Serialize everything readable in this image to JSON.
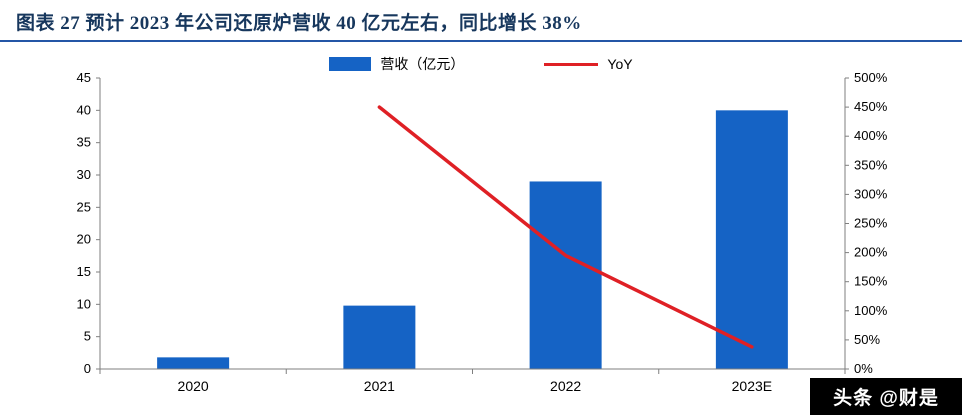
{
  "header": {
    "title": "图表 27  预计 2023 年公司还原炉营收 40 亿元左右，同比增长 38%"
  },
  "watermark": {
    "text": "头条 @财是"
  },
  "colors": {
    "bar": "#1563C5",
    "line": "#DF2025",
    "title": "#17375D",
    "rule": "#2456A6",
    "axis": "#7F7F7F"
  },
  "chart_data": {
    "type": "bar",
    "subtype": "bar+line combo, dual axis",
    "title": "图表 27  预计 2023 年公司还原炉营收 40 亿元左右，同比增长 38%",
    "categories": [
      "2020",
      "2021",
      "2022",
      "2023E"
    ],
    "series": [
      {
        "name": "营收（亿元）",
        "type": "bar",
        "axis": "left",
        "color": "#1563C5",
        "values": [
          1.8,
          9.8,
          29,
          40
        ]
      },
      {
        "name": "YoY",
        "type": "line",
        "axis": "right",
        "color": "#DF2025",
        "unit": "%",
        "values": [
          null,
          450,
          195,
          38
        ]
      }
    ],
    "left_axis": {
      "min": 0,
      "max": 45,
      "step": 5
    },
    "right_axis": {
      "min": 0,
      "max": 500,
      "step": 50,
      "format": "percent"
    },
    "legend_position": "top",
    "grid": false
  }
}
